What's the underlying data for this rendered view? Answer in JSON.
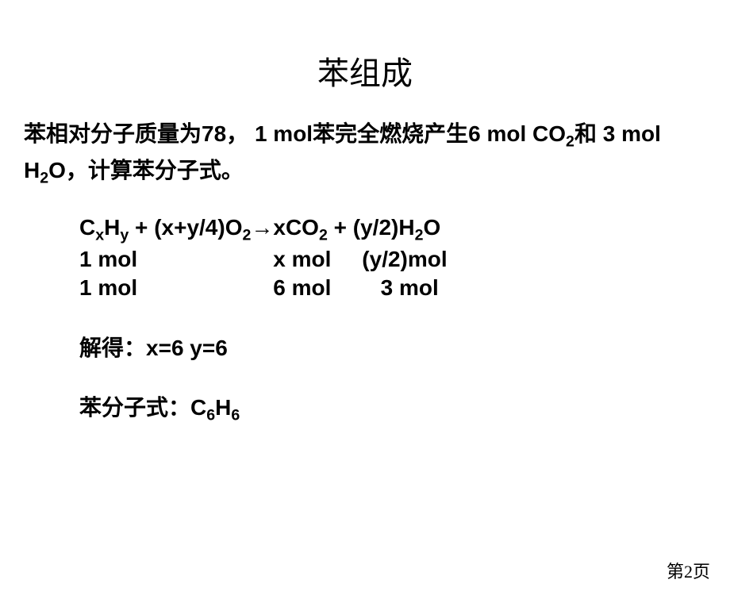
{
  "title": "苯组成",
  "problem": {
    "line1_a": "苯相对分子质量为",
    "mass": "78",
    "line1_b": "， ",
    "mol1": "1 mol",
    "line1_c": "苯完全燃烧产生",
    "mol6": "6 mol CO",
    "sub2a": "2",
    "line1_d": "和 ",
    "mol3": "3 mol H",
    "sub2b": "2",
    "o": "O",
    "line1_e": "，计算苯分子式。"
  },
  "equation": {
    "cx": "C",
    "x": "x",
    "hy": "H",
    "y": "y",
    "plus1": " + (x+y/4)O",
    "sub2c": "2",
    "arrow": "→",
    "xco": "xCO",
    "sub2d": "2",
    "plus2": " + (y/2)H",
    "sub2e": "2",
    "o2": "O"
  },
  "mol_row1": "1 mol                      x mol     (y/2)mol",
  "mol_row2": "1 mol                      6 mol        3 mol",
  "result": {
    "label": "解得：",
    "values": "x=6  y=6"
  },
  "formula": {
    "label": "苯分子式：",
    "c": "C",
    "six1": "6",
    "h": "H",
    "six2": "6"
  },
  "page": "第2页"
}
